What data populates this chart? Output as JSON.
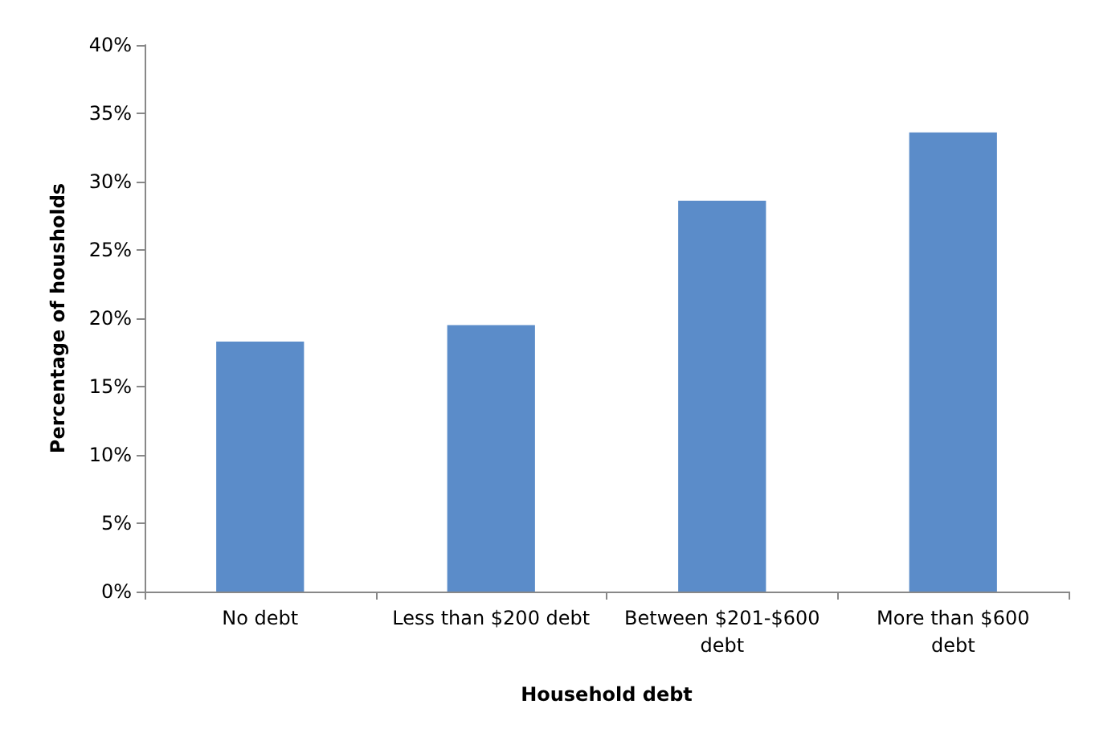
{
  "chart_data": {
    "type": "bar",
    "xlabel": "Household debt",
    "ylabel": "Percentage of housholds",
    "categories": [
      "No debt",
      "Less than $200 debt",
      "Between $201-$600\ndebt",
      "More than $600\ndebt"
    ],
    "values": [
      18.3,
      19.5,
      28.6,
      33.6
    ],
    "color": "#5b8cc9",
    "ylim": [
      0,
      40
    ],
    "yticks": [
      {
        "value": 0,
        "label": "0%"
      },
      {
        "value": 5,
        "label": "5%"
      },
      {
        "value": 10,
        "label": "10%"
      },
      {
        "value": 15,
        "label": "15%"
      },
      {
        "value": 20,
        "label": "20%"
      },
      {
        "value": 25,
        "label": "25%"
      },
      {
        "value": 30,
        "label": "30%"
      },
      {
        "value": 35,
        "label": "35%"
      },
      {
        "value": 40,
        "label": "40%"
      }
    ],
    "grid": false
  }
}
